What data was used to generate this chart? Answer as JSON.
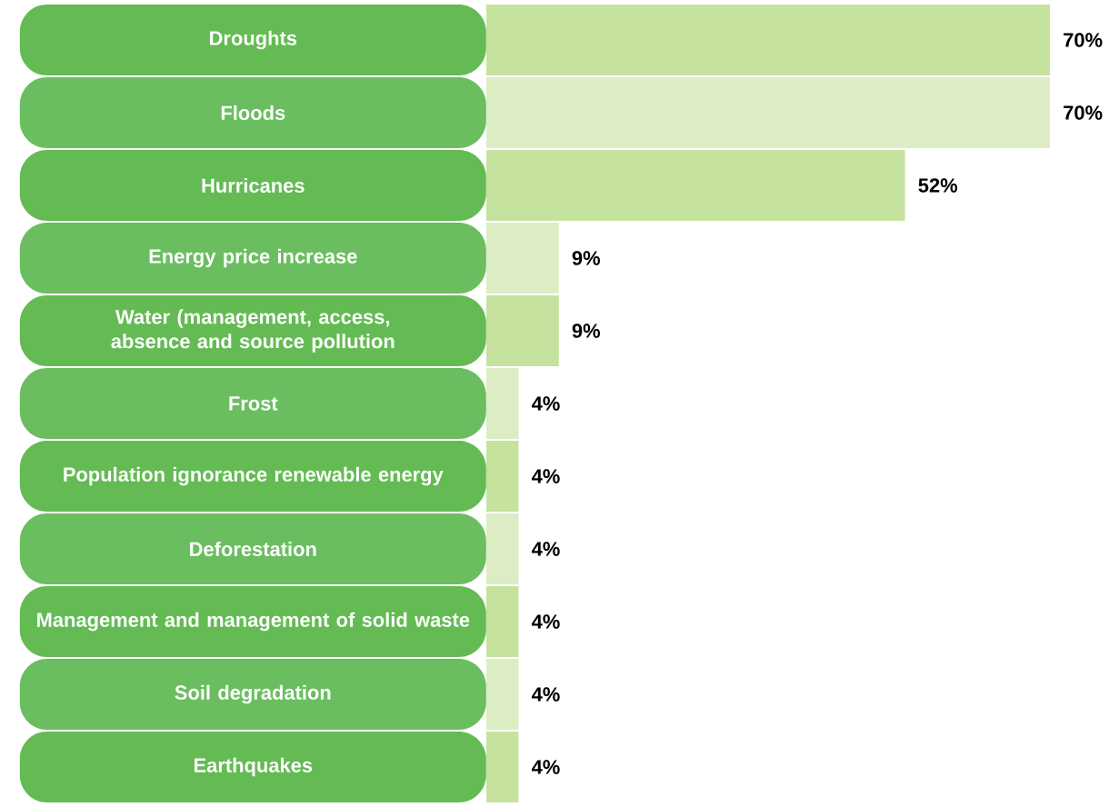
{
  "chart_data": {
    "type": "bar",
    "orientation": "horizontal",
    "categories": [
      "Droughts",
      "Floods",
      "Hurricanes",
      "Energy price increase",
      "Water (management, access, absence and source pollution",
      "Frost",
      "Population ignorance renewable energy",
      "Deforestation",
      "Management and management of solid waste",
      "Soil degradation",
      "Earthquakes"
    ],
    "values": [
      70,
      70,
      52,
      9,
      9,
      4,
      4,
      4,
      4,
      4,
      4
    ],
    "value_labels": [
      "70%",
      "70%",
      "52%",
      "9%",
      "9%",
      "4%",
      "4%",
      "4%",
      "4%",
      "4%",
      "4%"
    ],
    "colors": [
      "#c5e29e",
      "#dcedc4",
      "#c5e29e",
      "#dcedc4",
      "#c5e29e",
      "#dcedc4",
      "#c5e29e",
      "#dcedc4",
      "#c5e29e",
      "#dcedc4",
      "#c5e29e"
    ]
  }
}
